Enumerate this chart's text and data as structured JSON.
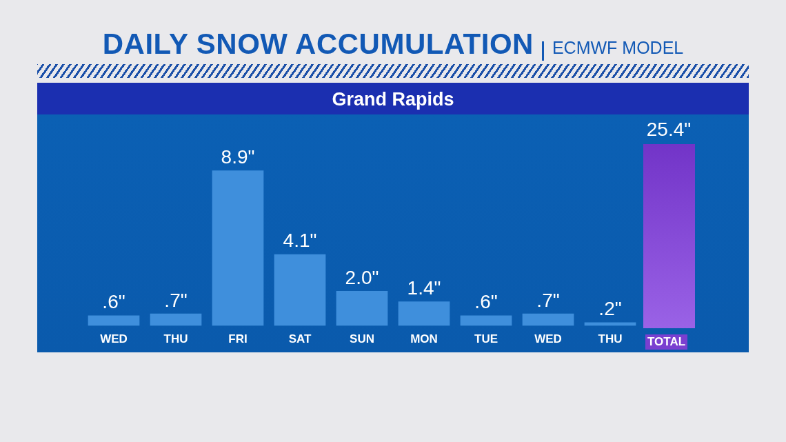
{
  "chart_data": {
    "type": "bar",
    "title": "DAILY SNOW ACCUMULATION",
    "subtitle": "ECMWF MODEL",
    "annotations": [
      "Grand Rapids",
      "25.4\"",
      "TOTAL"
    ],
    "categories": [
      "WED",
      "THU",
      "FRI",
      "SAT",
      "SUN",
      "MON",
      "TUE",
      "WED",
      "THU"
    ],
    "values": [
      0.6,
      0.7,
      8.9,
      4.1,
      2.0,
      1.4,
      0.6,
      0.7,
      0.2
    ],
    "value_labels": [
      ".6\"",
      ".7\"",
      "8.9\"",
      "4.1\"",
      "2.0\"",
      "1.4\"",
      ".6\"",
      ".7\"",
      ".2\""
    ],
    "color": "#3f8fdc"
  }
}
